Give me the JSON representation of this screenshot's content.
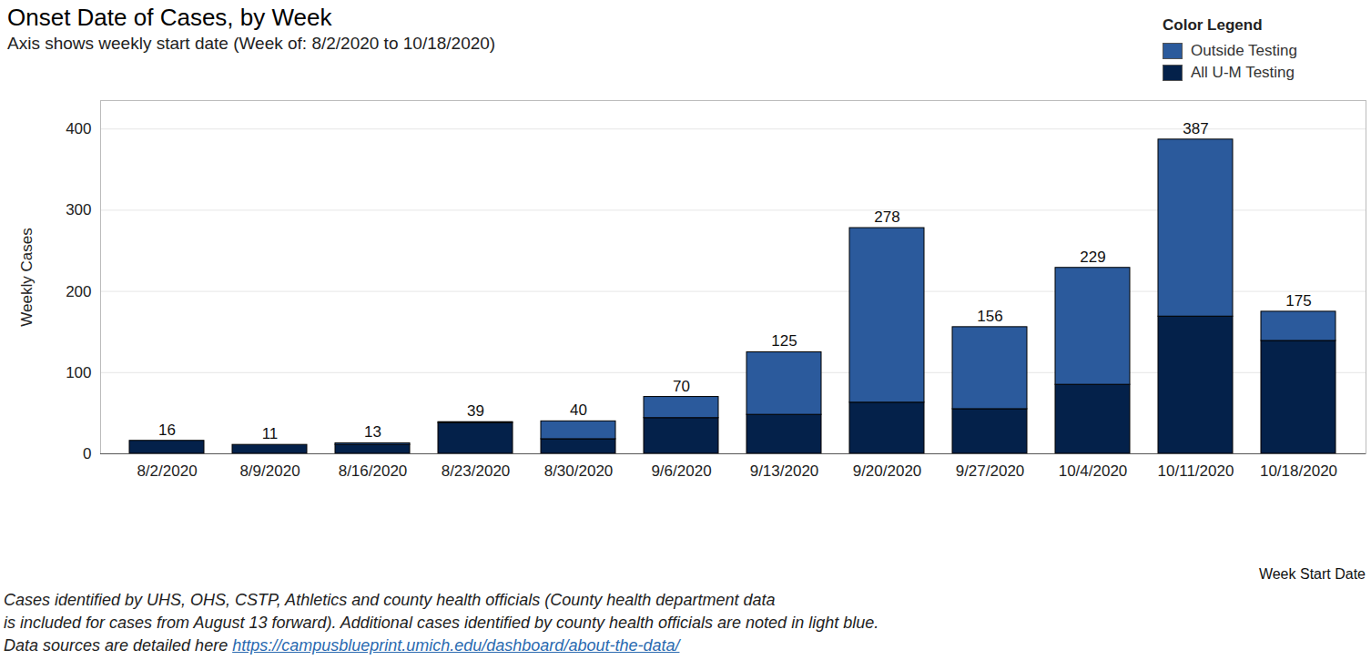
{
  "chart_data": {
    "type": "bar",
    "title": "Onset Date of Cases, by Week",
    "subtitle": "Axis shows weekly start date (Week of: 8/2/2020 to 10/18/2020)",
    "y_label": "Weekly Cases",
    "x_label": "Week Start Date",
    "legend_title": "Color Legend",
    "legend": "top-right",
    "stacked": true,
    "grid": true,
    "categories": [
      "8/2/2020",
      "8/9/2020",
      "8/16/2020",
      "8/23/2020",
      "8/30/2020",
      "9/6/2020",
      "9/13/2020",
      "9/20/2020",
      "9/27/2020",
      "10/4/2020",
      "10/11/2020",
      "10/18/2020"
    ],
    "series": [
      {
        "name": "Outside Testing",
        "color": "#2b5a9c",
        "values": [
          0,
          0,
          2,
          1,
          22,
          26,
          77,
          215,
          101,
          144,
          218,
          36
        ]
      },
      {
        "name": "All U-M Testing",
        "color": "#04214a",
        "values": [
          16,
          11,
          11,
          38,
          18,
          44,
          48,
          63,
          55,
          85,
          169,
          139
        ]
      }
    ],
    "totals": [
      16,
      11,
      13,
      39,
      40,
      70,
      125,
      278,
      156,
      229,
      387,
      175
    ],
    "ylim": [
      0,
      435
    ],
    "yticks": [
      0,
      100,
      200,
      300,
      400
    ],
    "caption": [
      "Cases identified by UHS, OHS, CSTP, Athletics and county health officials (County health department data",
      "is included for cases from August 13 forward).  Additional cases identified by county health officials are noted in light blue.",
      "Data sources are detailed here "
    ],
    "caption_link": "https://campusblueprint.umich.edu/dashboard/about-the-data/"
  }
}
